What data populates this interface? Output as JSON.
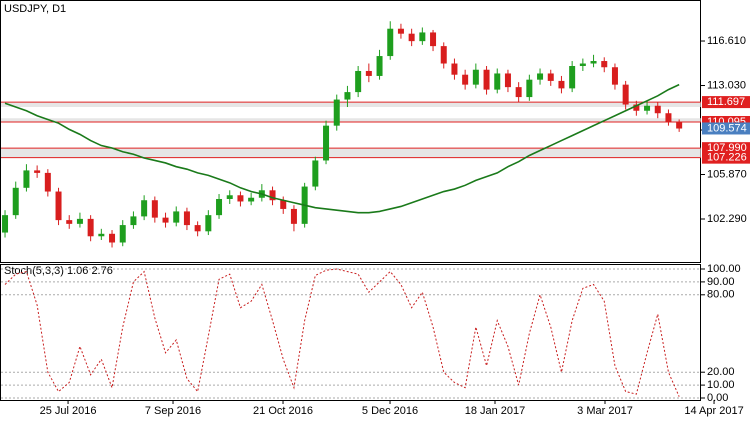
{
  "chart_data": {
    "type": "candlestick",
    "title": "USDJPY, D1",
    "open": [
      101.2,
      102.6,
      104.8,
      106.2,
      106.0,
      104.5,
      102.2,
      101.9,
      102.3,
      100.9,
      101.1,
      100.4,
      101.8,
      102.5,
      103.8,
      102.4,
      102.0,
      102.9,
      101.8,
      101.3,
      102.6,
      103.9,
      104.2,
      103.7,
      104.0,
      104.6,
      103.8,
      103.1,
      101.9,
      104.9,
      107.0,
      109.8,
      111.9,
      112.5,
      114.2,
      113.8,
      115.4,
      117.6,
      117.2,
      116.6,
      117.3,
      116.2,
      114.8,
      113.9,
      113.1,
      114.3,
      112.7,
      114.0,
      112.9,
      112.1,
      113.5,
      114.0,
      113.4,
      112.8,
      114.6,
      114.8,
      115.0,
      114.5,
      113.1,
      111.5,
      111.0,
      111.4,
      110.8,
      110.1
    ],
    "high": [
      103.0,
      105.3,
      106.7,
      106.6,
      106.3,
      104.8,
      102.6,
      102.8,
      102.6,
      101.5,
      101.4,
      102.2,
      102.9,
      104.2,
      104.1,
      102.8,
      103.3,
      103.2,
      102.1,
      103.0,
      104.3,
      104.6,
      104.5,
      104.4,
      105.1,
      104.9,
      104.1,
      103.4,
      105.2,
      107.3,
      110.2,
      112.3,
      113.0,
      114.6,
      114.8,
      115.9,
      118.2,
      118.0,
      117.6,
      117.7,
      117.5,
      116.5,
      115.2,
      114.3,
      114.8,
      114.6,
      114.4,
      114.3,
      113.3,
      113.9,
      114.4,
      114.3,
      113.8,
      115.0,
      115.2,
      115.5,
      115.3,
      114.8,
      113.4,
      111.8,
      111.8,
      111.7,
      111.1,
      110.3
    ],
    "low": [
      100.8,
      102.3,
      104.5,
      105.6,
      104.1,
      101.8,
      101.5,
      101.6,
      100.5,
      100.6,
      100.0,
      100.1,
      101.5,
      102.2,
      102.0,
      101.6,
      101.7,
      101.4,
      100.9,
      101.0,
      102.3,
      103.5,
      103.3,
      103.4,
      103.7,
      103.4,
      102.7,
      101.3,
      101.6,
      104.6,
      106.7,
      109.4,
      111.3,
      112.1,
      113.3,
      113.5,
      115.1,
      116.8,
      116.2,
      116.3,
      115.8,
      114.4,
      113.5,
      112.7,
      112.8,
      112.3,
      112.4,
      112.5,
      111.7,
      111.8,
      113.1,
      113.0,
      112.4,
      112.5,
      114.2,
      114.5,
      114.1,
      112.7,
      111.1,
      110.6,
      110.7,
      110.4,
      109.8,
      109.3
    ],
    "close": [
      102.6,
      104.8,
      106.2,
      106.0,
      104.5,
      102.2,
      101.9,
      102.3,
      100.9,
      101.1,
      100.4,
      101.8,
      102.5,
      103.8,
      102.4,
      102.0,
      102.9,
      101.8,
      101.3,
      102.6,
      103.9,
      104.2,
      103.7,
      104.0,
      104.6,
      103.8,
      103.1,
      101.9,
      104.9,
      107.0,
      109.8,
      111.9,
      112.5,
      114.2,
      113.8,
      115.4,
      117.6,
      117.2,
      116.6,
      117.3,
      116.2,
      114.8,
      113.9,
      113.1,
      114.3,
      112.7,
      114.0,
      112.9,
      112.1,
      113.5,
      114.0,
      113.4,
      112.8,
      114.6,
      114.8,
      115.0,
      114.5,
      113.1,
      111.5,
      111.0,
      111.4,
      110.8,
      110.1,
      109.57
    ],
    "up_color": "#1e9e1e",
    "down_color": "#d81e1e",
    "xlim": [
      -0.47,
      66.35
    ],
    "xticks": [
      {
        "value": 5.89,
        "label": "25 Jul 2016"
      },
      {
        "value": 15.7,
        "label": "7 Sep 2016"
      },
      {
        "value": 25.98,
        "label": "21 Oct 2016"
      },
      {
        "value": 35.98,
        "label": "5 Dec 2016"
      },
      {
        "value": 45.79,
        "label": "18 Jan 2017"
      },
      {
        "value": 56.07,
        "label": "3 Mar 2017"
      },
      {
        "value": 66.26,
        "label": "14 Apr 2017"
      }
    ],
    "ylim": [
      98.75,
      119.83
    ],
    "yticks": [
      {
        "value": 116.61,
        "label": "116.610"
      },
      {
        "value": 113.03,
        "label": "113.030"
      },
      {
        "value": 109.45,
        "label": "109.450"
      },
      {
        "value": 105.87,
        "label": "105.870"
      },
      {
        "value": 102.29,
        "label": "102.290"
      }
    ],
    "moving_average": {
      "color": "#1a7a1a",
      "values": [
        111.6,
        111.3,
        111.0,
        110.6,
        110.3,
        110.0,
        109.5,
        109.1,
        108.6,
        108.2,
        108.0,
        107.7,
        107.5,
        107.2,
        107.0,
        106.8,
        106.5,
        106.3,
        106.0,
        105.8,
        105.5,
        105.2,
        104.8,
        104.5,
        104.3,
        104.0,
        103.8,
        103.6,
        103.4,
        103.2,
        103.1,
        103.0,
        102.9,
        102.8,
        102.8,
        102.9,
        103.1,
        103.3,
        103.6,
        103.9,
        104.2,
        104.5,
        104.7,
        105.0,
        105.4,
        105.7,
        106.0,
        106.5,
        106.9,
        107.4,
        107.8,
        108.2,
        108.6,
        109.0,
        109.4,
        109.8,
        110.2,
        110.6,
        111.0,
        111.4,
        111.8,
        112.2,
        112.7,
        113.1
      ]
    },
    "bands": [
      [
        111.3,
        111.697
      ],
      [
        110.095,
        110.4
      ],
      [
        107.226,
        107.99
      ]
    ],
    "levels": [
      {
        "value": 111.697,
        "label": "111.697"
      },
      {
        "value": 110.095,
        "label": "110.095"
      },
      {
        "value": 107.99,
        "label": "107.990"
      },
      {
        "value": 107.226,
        "label": "107.226"
      }
    ],
    "level_color": "#e02020",
    "last_price": {
      "value": 109.574,
      "label": "109.574"
    },
    "last_price_color": "#4a7fc0",
    "indicator": {
      "type": "line",
      "title": "Stoch(5,3,3) 1.06 2.76",
      "color": "#c81e1e",
      "values": [
        88,
        96,
        98,
        72,
        20,
        5,
        12,
        40,
        18,
        30,
        8,
        55,
        90,
        98,
        62,
        35,
        45,
        15,
        5,
        48,
        92,
        96,
        70,
        75,
        88,
        60,
        30,
        8,
        60,
        95,
        99,
        100,
        98,
        96,
        82,
        90,
        98,
        88,
        70,
        82,
        55,
        20,
        12,
        8,
        55,
        25,
        60,
        40,
        10,
        50,
        80,
        55,
        20,
        60,
        85,
        88,
        75,
        25,
        5,
        3,
        35,
        65,
        20,
        1.06
      ],
      "ylim": [
        0,
        100
      ],
      "yticks": [
        {
          "value": 100,
          "label": "100.00"
        },
        {
          "value": 90,
          "label": "90.00"
        },
        {
          "value": 80,
          "label": "80.00"
        },
        {
          "value": 20,
          "label": "20.00"
        },
        {
          "value": 10,
          "label": "10.00"
        },
        {
          "value": 0,
          "label": "0.00"
        }
      ]
    }
  }
}
